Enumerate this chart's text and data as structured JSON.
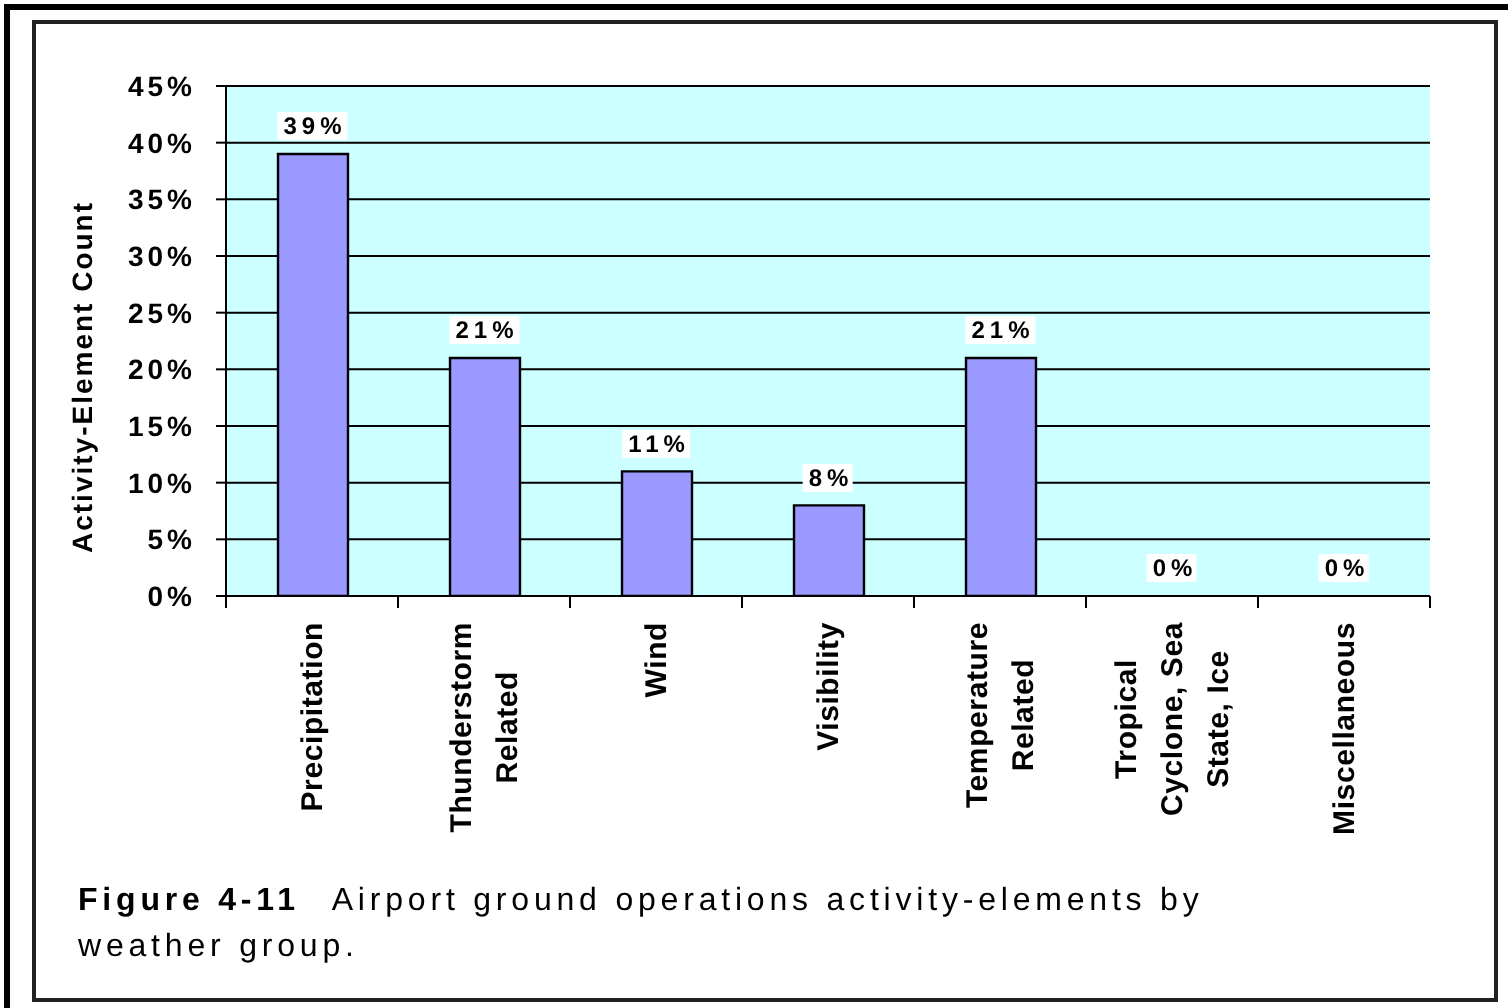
{
  "chart_data": {
    "type": "bar",
    "categories": [
      "Precipitation",
      "Thunderstorm Related",
      "Wind",
      "Visibility",
      "Temperature Related",
      "Tropical Cyclone, Sea State, Ice",
      "Miscellaneous"
    ],
    "values": [
      39,
      21,
      11,
      8,
      21,
      0,
      0
    ],
    "value_labels": [
      "39%",
      "21%",
      "11%",
      "8%",
      "21%",
      "0%",
      "0%"
    ],
    "color": "#9999ff",
    "ylabel": "Activity-Element Count",
    "ylim": [
      0,
      45
    ],
    "yticks": [
      {
        "value": 0,
        "label": "0%"
      },
      {
        "value": 5,
        "label": "5%"
      },
      {
        "value": 10,
        "label": "10%"
      },
      {
        "value": 15,
        "label": "15%"
      },
      {
        "value": 20,
        "label": "20%"
      },
      {
        "value": 25,
        "label": "25%"
      },
      {
        "value": 30,
        "label": "30%"
      },
      {
        "value": 35,
        "label": "35%"
      },
      {
        "value": 40,
        "label": "40%"
      },
      {
        "value": 45,
        "label": "45%"
      }
    ],
    "grid": "y",
    "annotations": [
      "Figure 4-11 Airport ground operations activity-elements by weather group."
    ]
  }
}
